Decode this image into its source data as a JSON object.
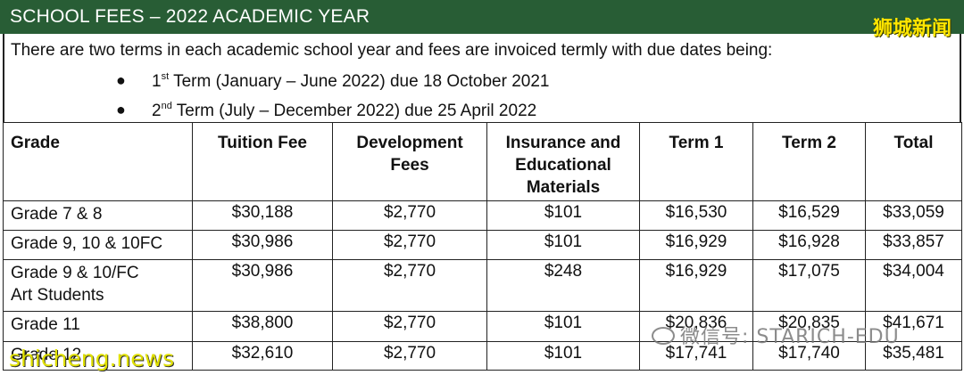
{
  "header": {
    "title": "SCHOOL FEES – 2022 ACADEMIC YEAR"
  },
  "watermarks": {
    "top_right": "狮城新闻",
    "bottom_left": "shicheng.news",
    "bottom_right": "微信号: STARICH-EDU"
  },
  "intro": "There are two terms in each academic school year and fees are invoiced termly with due dates being:",
  "terms": [
    {
      "num": "1",
      "sup": "st",
      "text": " Term (January – June 2022) due 18 October 2021"
    },
    {
      "num": "2",
      "sup": "nd",
      "text": " Term (July – December 2022) due 25 April 2022"
    }
  ],
  "table": {
    "headers": [
      "Grade",
      "Tuition Fee",
      "Development Fees",
      "Insurance and Educational Materials",
      "Term 1",
      "Term 2",
      "Total"
    ],
    "header_lines": {
      "dev": [
        "Development",
        "Fees"
      ],
      "ins": [
        "Insurance and",
        "Educational",
        "Materials"
      ]
    },
    "rows": [
      {
        "grade": "Grade 7 & 8",
        "tuition": "$30,188",
        "dev": "$2,770",
        "ins": "$101",
        "t1": "$16,530",
        "t2": "$16,529",
        "total": "$33,059"
      },
      {
        "grade": "Grade 9, 10 & 10FC",
        "tuition": "$30,986",
        "dev": "$2,770",
        "ins": "$101",
        "t1": "$16,929",
        "t2": "$16,928",
        "total": "$33,857"
      },
      {
        "grade": "Grade 9 & 10/FC",
        "grade2": "Art Students",
        "tuition": "$30,986",
        "dev": "$2,770",
        "ins": "$248",
        "t1": "$16,929",
        "t2": "$17,075",
        "total": "$34,004"
      },
      {
        "grade": "Grade 11",
        "tuition": "$38,800",
        "dev": "$2,770",
        "ins": "$101",
        "t1": "$20,836",
        "t2": "$20,835",
        "total": "$41,671"
      },
      {
        "grade": "Grade 12",
        "tuition": "$32,610",
        "dev": "$2,770",
        "ins": "$101",
        "t1": "$17,741",
        "t2": "$17,740",
        "total": "$35,481"
      }
    ]
  }
}
